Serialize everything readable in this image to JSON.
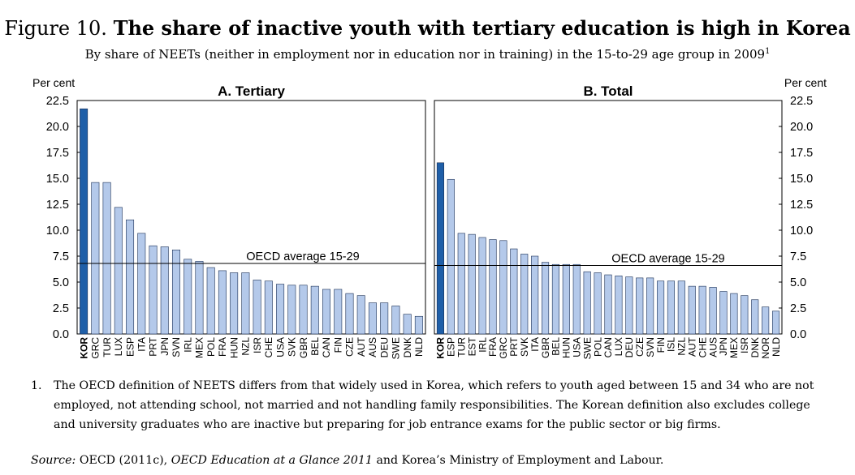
{
  "figure": {
    "label": "Figure 10.",
    "title": "The share of inactive youth with tertiary education is high in Korea",
    "subtitle": "By share of NEETs (neither in employment nor in education nor in training) in the 15-to-29 age group in 2009",
    "subtitle_note": "1"
  },
  "colors": {
    "highlight": "#1f5fa8",
    "bar": "#b4c9ea",
    "bar_stroke": "#1a2f55"
  },
  "chart_data": [
    {
      "type": "bar",
      "title": "A. Tertiary",
      "ylabel": "Per cent",
      "ylim": [
        0,
        22.5
      ],
      "yticks": [
        "0.0",
        "2.5",
        "5.0",
        "7.5",
        "10.0",
        "12.5",
        "15.0",
        "17.5",
        "20.0",
        "22.5"
      ],
      "reference_line": {
        "label": "OECD average 15-29",
        "value": 6.8
      },
      "highlight": "KOR",
      "categories": [
        "KOR",
        "GRC",
        "TUR",
        "LUX",
        "ESP",
        "ITA",
        "PRT",
        "JPN",
        "SVN",
        "IRL",
        "MEX",
        "POL",
        "FRA",
        "HUN",
        "NZL",
        "ISR",
        "CHE",
        "USA",
        "SVK",
        "GBR",
        "BEL",
        "CAN",
        "FIN",
        "CZE",
        "AUT",
        "AUS",
        "DEU",
        "SWE",
        "DNK",
        "NLD"
      ],
      "values": [
        21.7,
        14.6,
        14.6,
        12.2,
        11.0,
        9.7,
        8.5,
        8.4,
        8.1,
        7.2,
        7.0,
        6.4,
        6.1,
        5.9,
        5.9,
        5.2,
        5.1,
        4.8,
        4.7,
        4.7,
        4.6,
        4.3,
        4.3,
        3.9,
        3.7,
        3.0,
        3.0,
        2.7,
        1.9,
        1.7
      ]
    },
    {
      "type": "bar",
      "title": "B. Total",
      "ylabel": "Per cent",
      "ylim": [
        0,
        22.5
      ],
      "yticks": [
        "0.0",
        "2.5",
        "5.0",
        "7.5",
        "10.0",
        "12.5",
        "15.0",
        "17.5",
        "20.0",
        "22.5"
      ],
      "reference_line": {
        "label": "OECD average 15-29",
        "value": 6.6
      },
      "highlight": "KOR",
      "categories": [
        "KOR",
        "ESP",
        "TUR",
        "EST",
        "IRL",
        "FRA",
        "GRC",
        "PRT",
        "SVK",
        "ITA",
        "GBR",
        "BEL",
        "HUN",
        "USA",
        "SWE",
        "POL",
        "CAN",
        "LUX",
        "DEU",
        "CZE",
        "SVN",
        "FIN",
        "ISL",
        "NZL",
        "AUT",
        "CHE",
        "AUS",
        "JPN",
        "MEX",
        "ISR",
        "DNK",
        "NOR",
        "NLD"
      ],
      "values": [
        16.5,
        14.9,
        9.7,
        9.6,
        9.3,
        9.1,
        9.0,
        8.2,
        7.7,
        7.5,
        6.9,
        6.7,
        6.7,
        6.7,
        6.0,
        5.9,
        5.7,
        5.6,
        5.5,
        5.4,
        5.4,
        5.1,
        5.1,
        5.1,
        4.6,
        4.6,
        4.5,
        4.1,
        3.9,
        3.7,
        3.3,
        2.6,
        2.2
      ]
    }
  ],
  "notes": {
    "number": "1.",
    "text": "The OECD definition of NEETS differs from that widely used in Korea, which refers to youth aged between 15 and 34 who are not employed, not attending school, not married and not handling family responsibilities. The Korean definition also excludes college and university graduates who are inactive but preparing for job entrance exams for the public sector or big firms."
  },
  "source": {
    "label": "Source:",
    "part1": "OECD (2011c),",
    "publication": "OECD Education at a Glance 2011",
    "part2": "and Korea’s Ministry of Employment and Labour."
  }
}
